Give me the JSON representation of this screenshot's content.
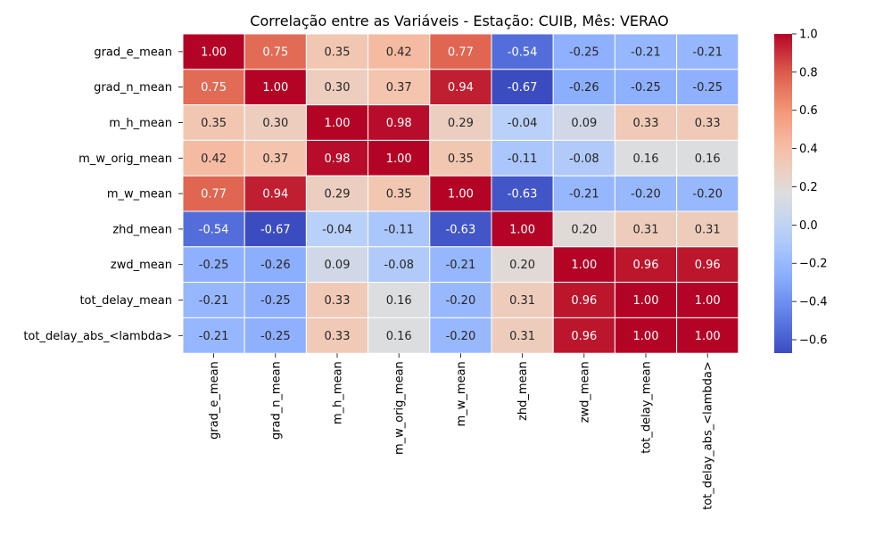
{
  "chart_data": {
    "type": "heatmap",
    "title": "Correlação entre as Variáveis - Estação: CUIB, Mês: VERAO",
    "row_labels": [
      "grad_e_mean",
      "grad_n_mean",
      "m_h_mean",
      "m_w_orig_mean",
      "m_w_mean",
      "zhd_mean",
      "zwd_mean",
      "tot_delay_mean",
      "tot_delay_abs_<lambda>"
    ],
    "col_labels": [
      "grad_e_mean",
      "grad_n_mean",
      "m_h_mean",
      "m_w_orig_mean",
      "m_w_mean",
      "zhd_mean",
      "zwd_mean",
      "tot_delay_mean",
      "tot_delay_abs_<lambda>"
    ],
    "values": [
      [
        1.0,
        0.75,
        0.35,
        0.42,
        0.77,
        -0.54,
        -0.25,
        -0.21,
        -0.21
      ],
      [
        0.75,
        1.0,
        0.3,
        0.37,
        0.94,
        -0.67,
        -0.26,
        -0.25,
        -0.25
      ],
      [
        0.35,
        0.3,
        1.0,
        0.98,
        0.29,
        -0.04,
        0.09,
        0.33,
        0.33
      ],
      [
        0.42,
        0.37,
        0.98,
        1.0,
        0.35,
        -0.11,
        -0.08,
        0.16,
        0.16
      ],
      [
        0.77,
        0.94,
        0.29,
        0.35,
        1.0,
        -0.63,
        -0.21,
        -0.2,
        -0.2
      ],
      [
        -0.54,
        -0.67,
        -0.04,
        -0.11,
        -0.63,
        1.0,
        0.2,
        0.31,
        0.31
      ],
      [
        -0.25,
        -0.26,
        0.09,
        -0.08,
        -0.21,
        0.2,
        1.0,
        0.96,
        0.96
      ],
      [
        -0.21,
        -0.25,
        0.33,
        0.16,
        -0.2,
        0.31,
        0.96,
        1.0,
        1.0
      ],
      [
        -0.21,
        -0.25,
        0.33,
        0.16,
        -0.2,
        0.31,
        0.96,
        1.0,
        1.0
      ]
    ],
    "value_format_decimals": 2,
    "colormap": "coolwarm",
    "vmin": -0.67,
    "vmax": 1.0,
    "colorbar_ticks": [
      1.0,
      0.8,
      0.6,
      0.4,
      0.2,
      0.0,
      -0.2,
      -0.4,
      -0.6
    ],
    "colorbar_tick_labels": [
      "1.0",
      "0.8",
      "0.6",
      "0.4",
      "0.2",
      "0.0",
      "−0.2",
      "−0.4",
      "−0.6"
    ],
    "grid_lines": "white",
    "x_tick_rotation": "vertical",
    "legend": "colorbar right"
  }
}
